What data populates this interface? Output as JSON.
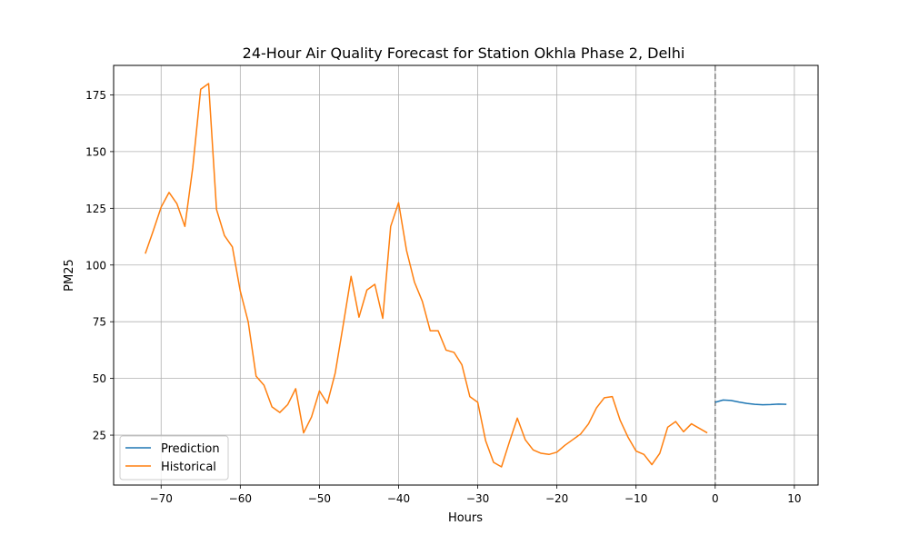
{
  "chart_data": {
    "type": "line",
    "title": "24-Hour Air Quality Forecast for Station Okhla Phase 2, Delhi",
    "xlabel": "Hours",
    "ylabel": "PM25",
    "xlim": [
      -76,
      13
    ],
    "ylim": [
      3,
      188
    ],
    "xticks": [
      -70,
      -60,
      -50,
      -40,
      -30,
      -20,
      -10,
      0,
      10
    ],
    "yticks": [
      25,
      50,
      75,
      100,
      125,
      150,
      175
    ],
    "grid": true,
    "legend_position": "lower-left",
    "vline": {
      "x": 0,
      "style": "dashed",
      "color": "#808080"
    },
    "series": [
      {
        "name": "Prediction",
        "color": "#1f77b4",
        "x": [
          0,
          1,
          2,
          3,
          4,
          5,
          6,
          7,
          8,
          9
        ],
        "y": [
          39.5,
          40.5,
          40.3,
          39.6,
          39.0,
          38.6,
          38.4,
          38.5,
          38.7,
          38.6
        ]
      },
      {
        "name": "Historical",
        "color": "#ff7f0e",
        "x": [
          -72,
          -71,
          -70,
          -69,
          -68,
          -67,
          -66,
          -65,
          -64,
          -63,
          -62,
          -61,
          -60,
          -59,
          -58,
          -57,
          -56,
          -55,
          -54,
          -53,
          -52,
          -51,
          -50,
          -49,
          -48,
          -47,
          -46,
          -45,
          -44,
          -43,
          -42,
          -41,
          -40,
          -39,
          -38,
          -37,
          -36,
          -35,
          -34,
          -33,
          -32,
          -31,
          -30,
          -29,
          -28,
          -27,
          -26,
          -25,
          -24,
          -23,
          -22,
          -21,
          -20,
          -19,
          -18,
          -17,
          -16,
          -15,
          -14,
          -13,
          -12,
          -11,
          -10,
          -9,
          -8,
          -7,
          -6,
          -5,
          -4,
          -3,
          -2,
          -1
        ],
        "y": [
          105,
          115,
          125.5,
          132,
          127,
          117,
          143,
          177.5,
          180,
          124.5,
          113,
          108,
          88.5,
          75,
          51,
          47,
          37.5,
          35,
          38.5,
          45.5,
          26,
          33,
          44.5,
          39,
          52.5,
          73.5,
          95,
          77,
          89,
          91.5,
          76.5,
          117,
          127.5,
          106.5,
          92.5,
          84,
          71,
          71,
          62.5,
          61.5,
          56,
          42,
          39.5,
          22.5,
          13,
          11,
          22,
          32.5,
          23,
          18.5,
          17,
          16.5,
          17.5,
          20.5,
          23,
          25.5,
          30,
          37,
          41.5,
          42,
          31.5,
          24,
          18,
          16.5,
          12,
          17,
          28.5,
          31,
          26.5,
          30,
          28,
          26
        ]
      }
    ]
  }
}
